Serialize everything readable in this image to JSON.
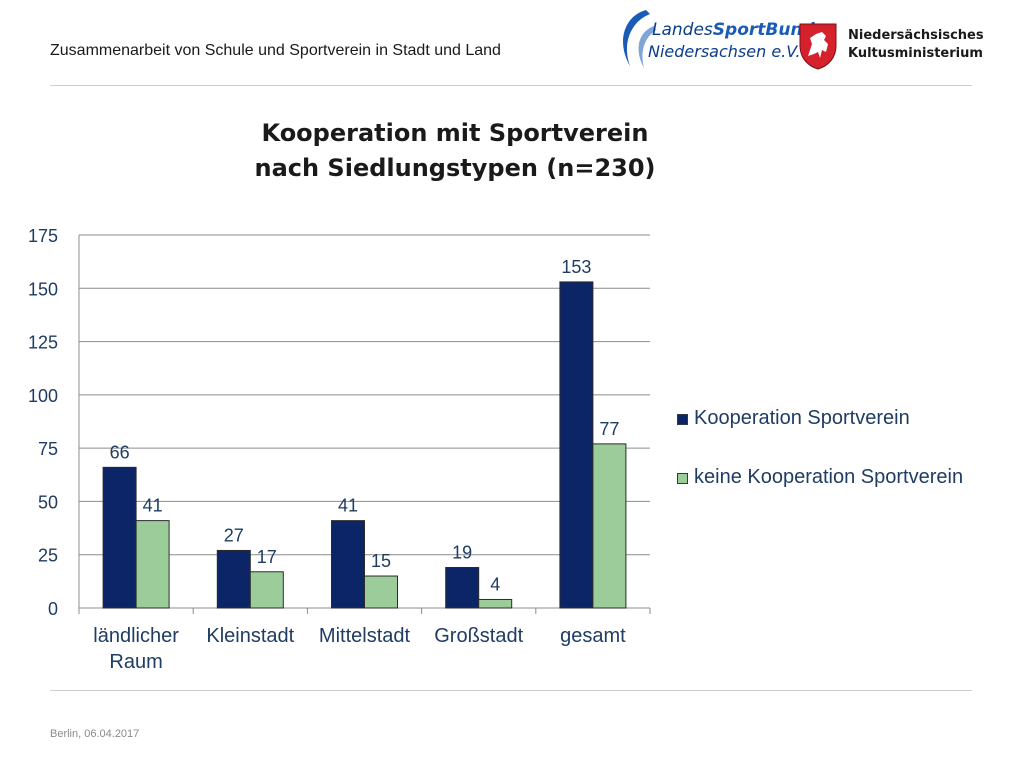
{
  "header": {
    "title": "Zusammenarbeit von Schule und Sportverein in Stadt und Land",
    "logo_lsb": {
      "part1": "Landes",
      "part2": "SportBund",
      "line2": "Niedersachsen e.V."
    },
    "logo_ministry": {
      "line1": "Niedersächsisches",
      "line2": "Kultusministerium"
    }
  },
  "footer": {
    "text": "Berlin, 06.04.2017"
  },
  "colors": {
    "series1": "#0c2566",
    "series2": "#9ccc9a",
    "label": "#1f3c63"
  },
  "chart_data": {
    "type": "bar",
    "title": "Kooperation mit Sportverein nach Siedlungstypen (n=230)",
    "title_lines": [
      "Kooperation mit Sportverein",
      "nach Siedlungstypen (n=230)"
    ],
    "categories": [
      [
        "ländlicher",
        "Raum"
      ],
      [
        "Kleinstadt"
      ],
      [
        "Mittelstadt"
      ],
      [
        "Großstadt"
      ],
      [
        "gesamt"
      ]
    ],
    "series": [
      {
        "name": "Kooperation Sportverein",
        "values": [
          66,
          27,
          41,
          19,
          153
        ]
      },
      {
        "name": "keine Kooperation Sportverein",
        "values": [
          41,
          17,
          15,
          4,
          77
        ]
      }
    ],
    "ylim": [
      0,
      175
    ],
    "yticks": [
      0,
      25,
      50,
      75,
      100,
      125,
      150,
      175
    ],
    "xlabel": "",
    "ylabel": "",
    "grid": true,
    "legend_position": "right"
  }
}
